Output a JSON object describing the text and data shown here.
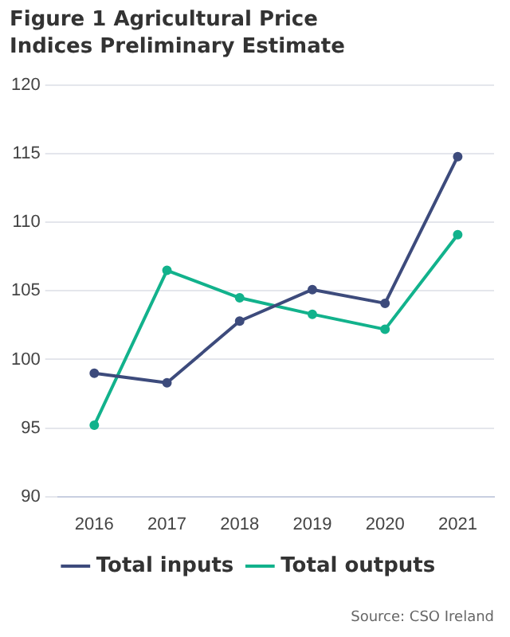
{
  "chart_data": {
    "type": "line",
    "title": "Figure 1 Agricultural Price Indices Preliminary Estimate",
    "categories": [
      "2016",
      "2017",
      "2018",
      "2019",
      "2020",
      "2021"
    ],
    "series": [
      {
        "name": "Total inputs",
        "color": "#3d4b7c",
        "values": [
          99.0,
          98.3,
          102.8,
          105.1,
          104.1,
          114.8
        ]
      },
      {
        "name": "Total outputs",
        "color": "#12b28c",
        "values": [
          95.2,
          106.5,
          104.5,
          103.3,
          102.2,
          109.1
        ]
      }
    ],
    "ylim": [
      90,
      120
    ],
    "yticks": [
      90,
      95,
      100,
      105,
      110,
      115,
      120
    ],
    "grid": "y",
    "legend": "bottom",
    "marker": "circle",
    "line_style": "solid",
    "annotations": [
      "Source: CSO Ireland"
    ]
  }
}
